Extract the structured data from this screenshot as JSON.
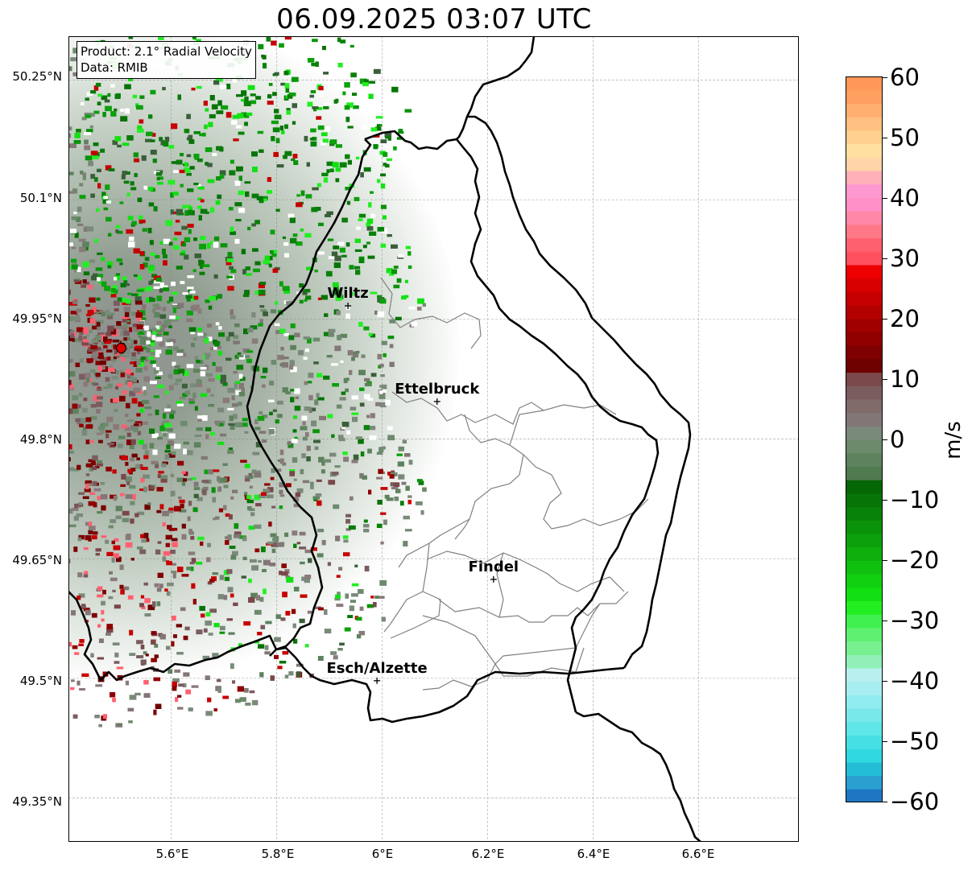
{
  "title": "06.09.2025 03:07 UTC",
  "info_box": {
    "product": "Product: 2.1° Radial Velocity",
    "data": "Data: RMIB"
  },
  "map": {
    "lon_range": [
      5.405,
      6.79
    ],
    "lat_range": [
      49.295,
      50.305
    ],
    "lat_ticks": [
      "50.25°N",
      "50.1°N",
      "49.95°N",
      "49.8°N",
      "49.65°N",
      "49.5°N",
      "49.35°N"
    ],
    "lon_ticks": [
      "5.6°E",
      "5.8°E",
      "6°E",
      "6.2°E",
      "6.4°E",
      "6.6°E"
    ],
    "radar_site": {
      "lon": 5.505,
      "lat": 49.914,
      "color": "#e00000"
    },
    "cities": [
      {
        "name": "Wiltz",
        "lon": 5.935,
        "lat": 49.967
      },
      {
        "name": "Ettelbruck",
        "lon": 6.104,
        "lat": 49.847
      },
      {
        "name": "Findel",
        "lon": 6.211,
        "lat": 49.624
      },
      {
        "name": "Esch/Alzette",
        "lon": 5.99,
        "lat": 49.497
      }
    ],
    "grid": true,
    "country_border_color": "#000000",
    "district_border_color": "#808080"
  },
  "colorbar": {
    "label": "m/s",
    "min": -60,
    "max": 60,
    "ticks": [
      "60",
      "50",
      "40",
      "30",
      "20",
      "10",
      "0",
      "−10",
      "−20",
      "−30",
      "−40",
      "−50",
      "−60"
    ],
    "colors": [
      "#1f77c4",
      "#2a9fd0",
      "#24bdd8",
      "#30d8e0",
      "#45e0e4",
      "#5ee6e8",
      "#78e8ea",
      "#90ecee",
      "#a8eef0",
      "#b8f0f0",
      "#90f0b8",
      "#78f090",
      "#5ef070",
      "#40f050",
      "#22ee22",
      "#12e012",
      "#10d010",
      "#0fc00f",
      "#0eb00e",
      "#0ca00c",
      "#0a920a",
      "#088208",
      "#067406",
      "#046604",
      "#507a50",
      "#5e825e",
      "#6c8a6c",
      "#7a8a7a",
      "#827676",
      "#806a6a",
      "#7a5c5e",
      "#7a484a",
      "#6e0000",
      "#7e0000",
      "#900000",
      "#a00000",
      "#b40000",
      "#c60000",
      "#d80000",
      "#ee0000",
      "#ff5060",
      "#ff6070",
      "#ff7888",
      "#ff88a8",
      "#ff90c8",
      "#ff98d0",
      "#ffb0b8",
      "#ffd4a8",
      "#ffe0a0",
      "#ffd090",
      "#ffc080",
      "#ffb070",
      "#ffa060",
      "#ff9858"
    ]
  }
}
